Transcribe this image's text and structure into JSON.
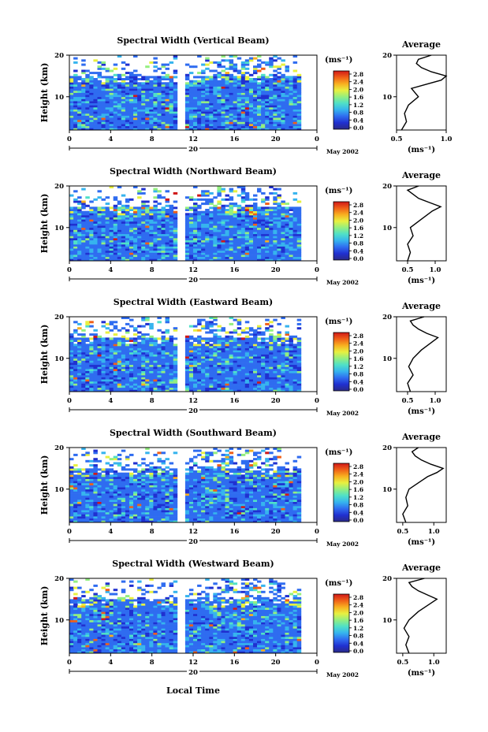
{
  "figure": {
    "xlabel": "Local Time",
    "month_label": "May 2002",
    "day_label": "20",
    "x_ticks": [
      "0",
      "4",
      "8",
      "12",
      "16",
      "20",
      "0"
    ],
    "y_ticks": [
      "20",
      "10"
    ],
    "ylabel": "Height (km)",
    "colorbar_unit": "(ms⁻¹)",
    "colorbar_ticks": [
      "2.8",
      "2.4",
      "2.0",
      "1.6",
      "1.2",
      "0.8",
      "0.4",
      "0.0"
    ],
    "avg_title": "Average",
    "avg_unit": "(ms⁻¹)",
    "colorscale": [
      "#2a2a88",
      "#2030d0",
      "#2f6cf0",
      "#36b4ee",
      "#4fe0c8",
      "#93ef80",
      "#e8f040",
      "#f8b020",
      "#f06018",
      "#d01818"
    ]
  },
  "chart_data": [
    {
      "type": "heatmap",
      "title": "Spectral Width (Vertical Beam)",
      "x_range_hours": [
        0,
        24
      ],
      "y_range_km": [
        2,
        20
      ],
      "color_range_ms": [
        0.0,
        2.8
      ],
      "average_profile": {
        "x_ticks": [
          "0.5",
          "1.0"
        ],
        "x_range": [
          0.5,
          1.0
        ],
        "height_km": [
          2,
          4,
          6,
          8,
          10,
          12,
          13,
          14,
          15,
          16,
          17,
          18,
          19,
          20
        ],
        "width_ms": [
          0.55,
          0.6,
          0.58,
          0.62,
          0.72,
          0.65,
          0.8,
          0.95,
          1.0,
          0.85,
          0.75,
          0.7,
          0.72,
          0.85
        ]
      }
    },
    {
      "type": "heatmap",
      "title": "Spectral Width (Northward Beam)",
      "x_range_hours": [
        0,
        24
      ],
      "y_range_km": [
        2,
        20
      ],
      "color_range_ms": [
        0.0,
        2.8
      ],
      "average_profile": {
        "x_ticks": [
          "0.5",
          "1.0"
        ],
        "x_range": [
          0.3,
          1.2
        ],
        "height_km": [
          2,
          4,
          6,
          8,
          10,
          12,
          14,
          15,
          16,
          17,
          18,
          19,
          20
        ],
        "width_ms": [
          0.5,
          0.55,
          0.5,
          0.6,
          0.55,
          0.75,
          0.95,
          1.1,
          0.9,
          0.7,
          0.6,
          0.5,
          0.7
        ]
      }
    },
    {
      "type": "heatmap",
      "title": "Spectral Width (Eastward Beam)",
      "x_range_hours": [
        0,
        24
      ],
      "y_range_km": [
        2,
        20
      ],
      "color_range_ms": [
        0.0,
        2.8
      ],
      "average_profile": {
        "x_ticks": [
          "0.5",
          "1.0"
        ],
        "x_range": [
          0.3,
          1.2
        ],
        "height_km": [
          2,
          4,
          6,
          8,
          10,
          12,
          14,
          15,
          16,
          17,
          18,
          19,
          20
        ],
        "width_ms": [
          0.55,
          0.5,
          0.6,
          0.52,
          0.6,
          0.75,
          0.95,
          1.05,
          0.85,
          0.7,
          0.6,
          0.55,
          0.8
        ]
      }
    },
    {
      "type": "heatmap",
      "title": "Spectral Width (Southward Beam)",
      "x_range_hours": [
        0,
        24
      ],
      "y_range_km": [
        2,
        20
      ],
      "color_range_ms": [
        0.0,
        2.8
      ],
      "average_profile": {
        "x_ticks": [
          "0.5",
          "1.0"
        ],
        "x_range": [
          0.4,
          1.2
        ],
        "height_km": [
          2,
          4,
          6,
          8,
          10,
          12,
          13,
          14,
          15,
          16,
          17,
          18,
          19,
          20
        ],
        "width_ms": [
          0.55,
          0.5,
          0.58,
          0.55,
          0.6,
          0.8,
          0.9,
          1.05,
          1.15,
          0.95,
          0.8,
          0.7,
          0.65,
          0.75
        ]
      }
    },
    {
      "type": "heatmap",
      "title": "Spectral Width (Westward Beam)",
      "x_range_hours": [
        0,
        24
      ],
      "y_range_km": [
        2,
        20
      ],
      "color_range_ms": [
        0.0,
        2.8
      ],
      "average_profile": {
        "x_ticks": [
          "0.5",
          "1.0"
        ],
        "x_range": [
          0.4,
          1.2
        ],
        "height_km": [
          2,
          4,
          6,
          8,
          10,
          12,
          14,
          15,
          16,
          17,
          18,
          19,
          20
        ],
        "width_ms": [
          0.6,
          0.55,
          0.6,
          0.52,
          0.6,
          0.75,
          0.95,
          1.05,
          0.9,
          0.75,
          0.65,
          0.6,
          0.85
        ]
      }
    }
  ]
}
